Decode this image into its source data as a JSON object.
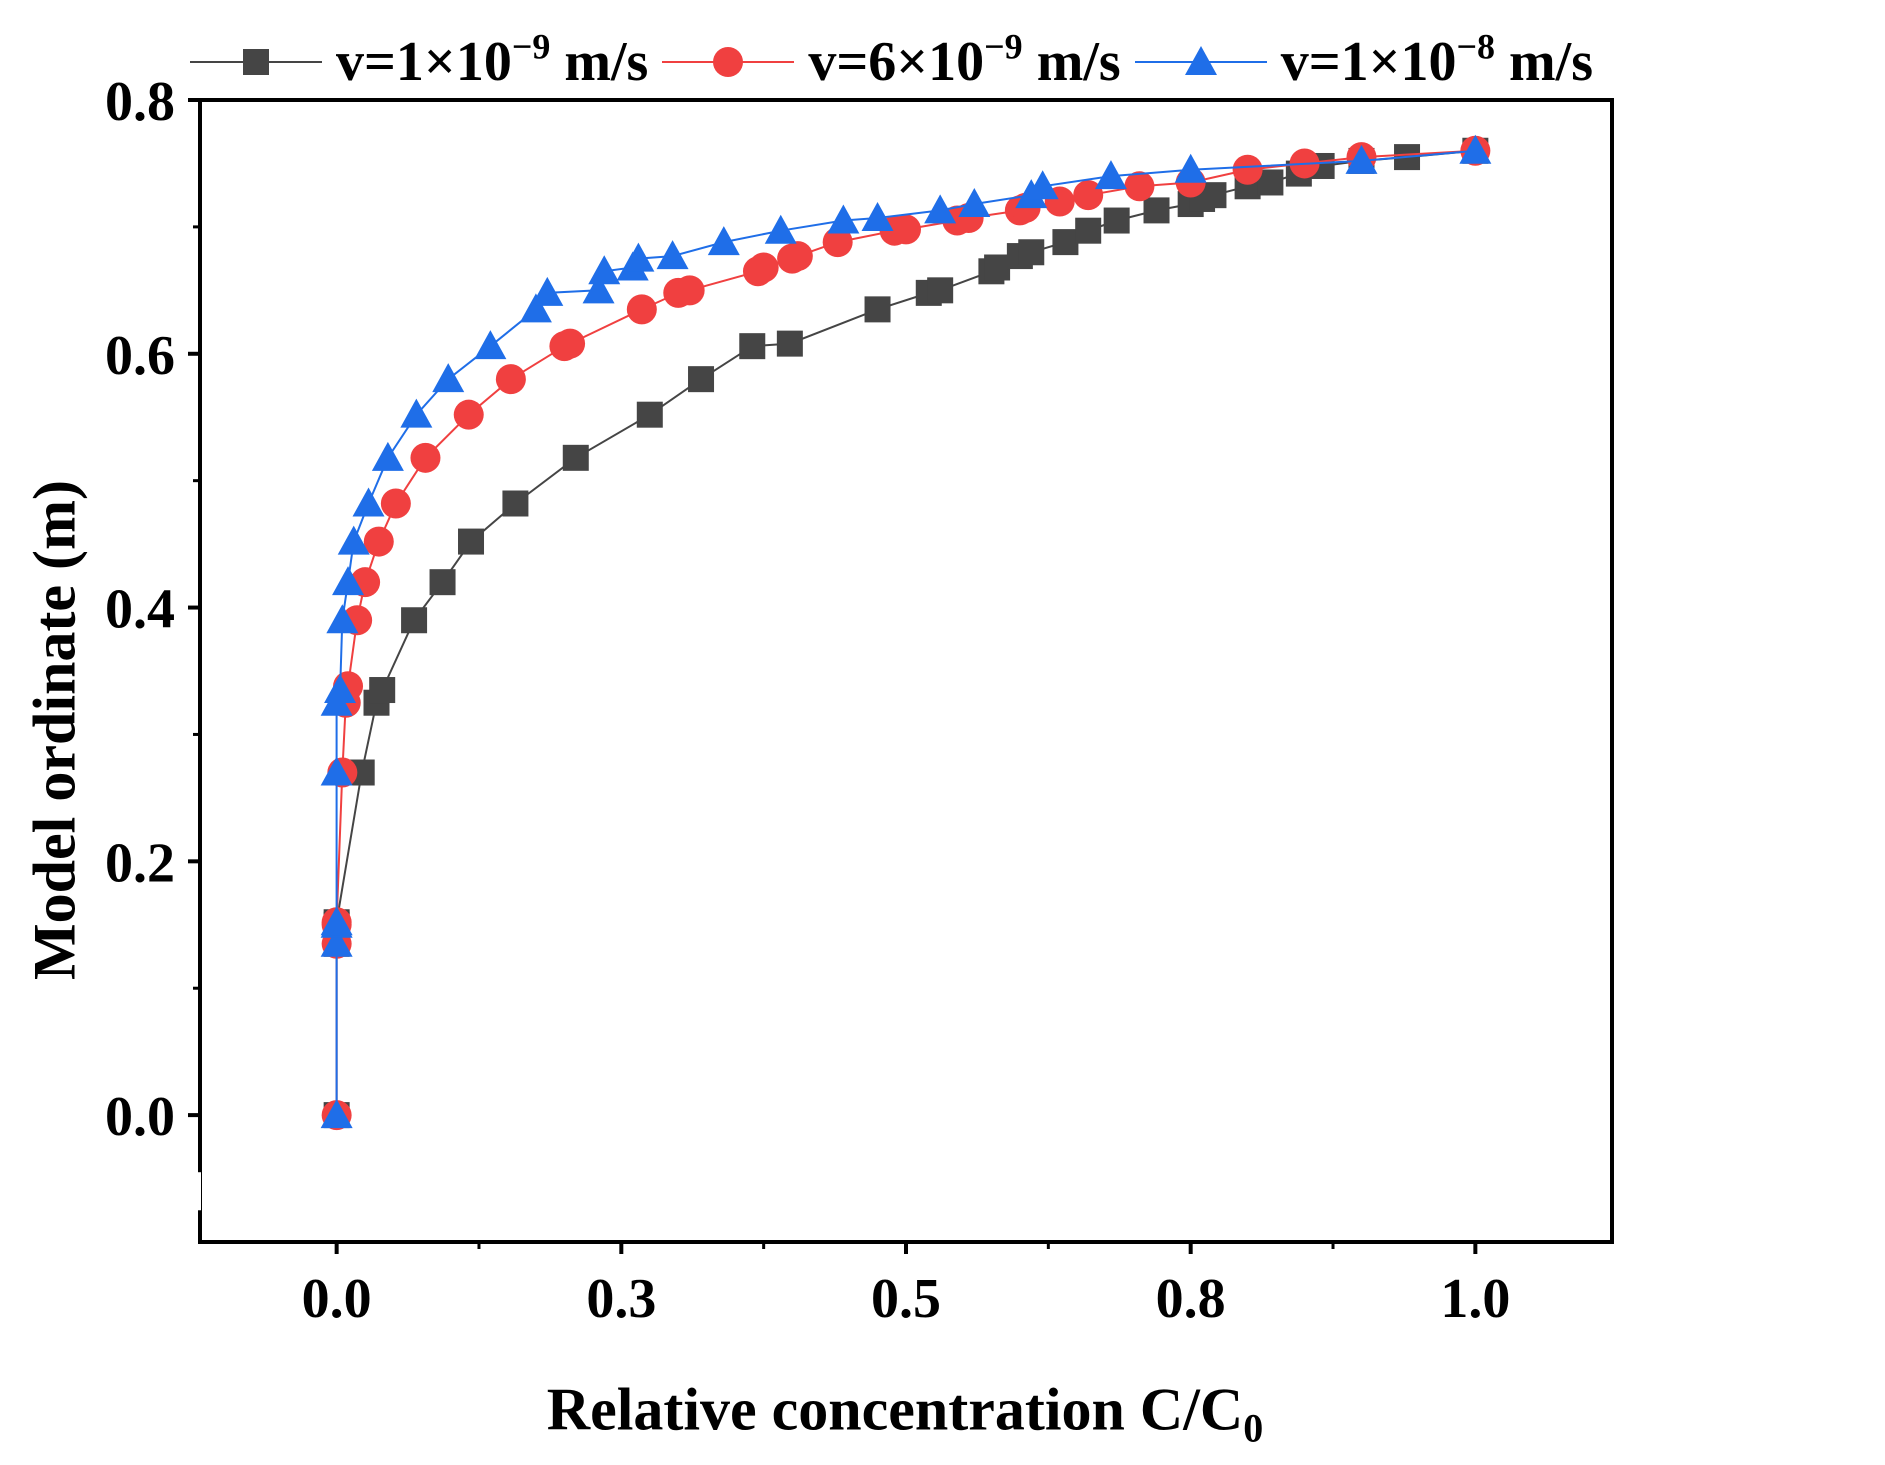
{
  "chart_data": {
    "type": "line",
    "title": "",
    "xlabel": "Relative concentration C/C",
    "xlabel_sub": "0",
    "ylabel": "Model ordinate (m)",
    "xlim": [
      -0.12,
      1.12
    ],
    "ylim": [
      -0.1,
      0.8
    ],
    "xticks": [
      0.0,
      0.25,
      0.5,
      0.75,
      1.0
    ],
    "xtick_labels": [
      "0.0",
      "0.3",
      "0.5",
      "0.8",
      "1.0"
    ],
    "yticks": [
      0.0,
      0.2,
      0.4,
      0.6,
      0.8
    ],
    "ytick_labels": [
      "0.0",
      "0.2",
      "0.4",
      "0.6",
      "0.8"
    ],
    "legend_position": "top",
    "series": [
      {
        "name": "v=1×10−9 m/s",
        "label_prefix": "v=1×10",
        "label_exp": "−9",
        "label_suffix": " m/s",
        "marker": "square",
        "color": "#454545",
        "x": [
          0.0,
          0.0,
          0.0,
          0.0,
          0.022,
          0.035,
          0.04,
          0.068,
          0.093,
          0.118,
          0.157,
          0.21,
          0.275,
          0.32,
          0.365,
          0.398,
          0.475,
          0.52,
          0.53,
          0.575,
          0.58,
          0.6,
          0.61,
          0.64,
          0.66,
          0.685,
          0.72,
          0.75,
          0.76,
          0.77,
          0.8,
          0.82,
          0.845,
          0.865,
          0.9,
          0.94,
          1.0
        ],
        "y": [
          0.0,
          0.135,
          0.15,
          0.152,
          0.27,
          0.325,
          0.335,
          0.39,
          0.42,
          0.452,
          0.482,
          0.518,
          0.552,
          0.58,
          0.606,
          0.608,
          0.635,
          0.648,
          0.65,
          0.665,
          0.668,
          0.677,
          0.68,
          0.688,
          0.697,
          0.705,
          0.713,
          0.718,
          0.722,
          0.725,
          0.732,
          0.735,
          0.742,
          0.748,
          0.752,
          0.755,
          0.76
        ]
      },
      {
        "name": "v=6×10−9 m/s",
        "label_prefix": "v=6×10",
        "label_exp": "−9",
        "label_suffix": " m/s",
        "marker": "circle",
        "color": "#f04040",
        "x": [
          0.0,
          0.0,
          0.0,
          0.0,
          0.005,
          0.008,
          0.01,
          0.018,
          0.025,
          0.037,
          0.052,
          0.078,
          0.116,
          0.153,
          0.2,
          0.205,
          0.268,
          0.3,
          0.31,
          0.37,
          0.375,
          0.4,
          0.405,
          0.44,
          0.49,
          0.5,
          0.545,
          0.555,
          0.6,
          0.605,
          0.635,
          0.66,
          0.705,
          0.75,
          0.8,
          0.85,
          0.9,
          1.0
        ],
        "y": [
          0.0,
          0.135,
          0.15,
          0.152,
          0.27,
          0.325,
          0.338,
          0.39,
          0.42,
          0.452,
          0.482,
          0.518,
          0.552,
          0.58,
          0.606,
          0.608,
          0.635,
          0.648,
          0.65,
          0.665,
          0.668,
          0.675,
          0.677,
          0.688,
          0.697,
          0.698,
          0.705,
          0.707,
          0.713,
          0.715,
          0.72,
          0.725,
          0.732,
          0.735,
          0.745,
          0.75,
          0.755,
          0.76
        ]
      },
      {
        "name": "v=1×10−8 m/s",
        "label_prefix": "v=1×10",
        "label_exp": "−8",
        "label_suffix": " m/s",
        "marker": "triangle",
        "color": "#1f6ee8",
        "x": [
          0.0,
          0.0,
          0.0,
          0.0,
          0.0,
          0.0,
          0.003,
          0.005,
          0.01,
          0.015,
          0.028,
          0.045,
          0.07,
          0.098,
          0.135,
          0.175,
          0.185,
          0.23,
          0.235,
          0.26,
          0.265,
          0.295,
          0.34,
          0.39,
          0.445,
          0.475,
          0.53,
          0.56,
          0.61,
          0.62,
          0.68,
          0.75,
          0.9,
          1.0
        ],
        "y": [
          0.0,
          0.135,
          0.15,
          0.152,
          0.27,
          0.325,
          0.335,
          0.39,
          0.42,
          0.452,
          0.482,
          0.518,
          0.552,
          0.58,
          0.606,
          0.635,
          0.648,
          0.65,
          0.665,
          0.668,
          0.675,
          0.677,
          0.688,
          0.697,
          0.705,
          0.707,
          0.713,
          0.718,
          0.725,
          0.732,
          0.74,
          0.745,
          0.752,
          0.76
        ]
      }
    ]
  }
}
